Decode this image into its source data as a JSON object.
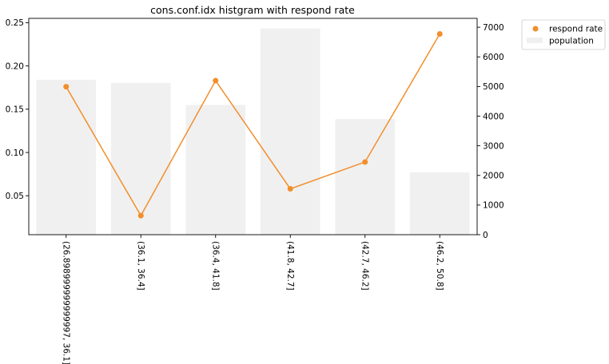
{
  "chart_data": {
    "type": "bar+line",
    "title": "cons.conf.idx histgram with respond rate",
    "categories": [
      "(26.898999999999997, 36.1]",
      "(36.1, 36.4]",
      "(36.4, 41.8]",
      "(41.8, 42.7]",
      "(42.7, 46.2]",
      "(46.2, 50.8]"
    ],
    "series": [
      {
        "name": "respond rate",
        "type": "line",
        "axis": "left",
        "color": "#f28e2b",
        "values": [
          0.176,
          0.027,
          0.183,
          0.058,
          0.089,
          0.237
        ]
      },
      {
        "name": "population",
        "type": "bar",
        "axis": "right",
        "color": "#f0f0f0",
        "values": [
          5230,
          5120,
          4380,
          6960,
          3900,
          2100
        ]
      }
    ],
    "left_axis": {
      "ylim": [
        0.005,
        0.255
      ],
      "ticks": [
        0.05,
        0.1,
        0.15,
        0.2,
        0.25
      ]
    },
    "right_axis": {
      "ylim": [
        0,
        7300
      ],
      "ticks": [
        0,
        1000,
        2000,
        3000,
        4000,
        5000,
        6000,
        7000
      ]
    },
    "legend": {
      "placement": "outside-top-right",
      "entries": [
        "respond rate",
        "population"
      ]
    },
    "grid": false
  }
}
